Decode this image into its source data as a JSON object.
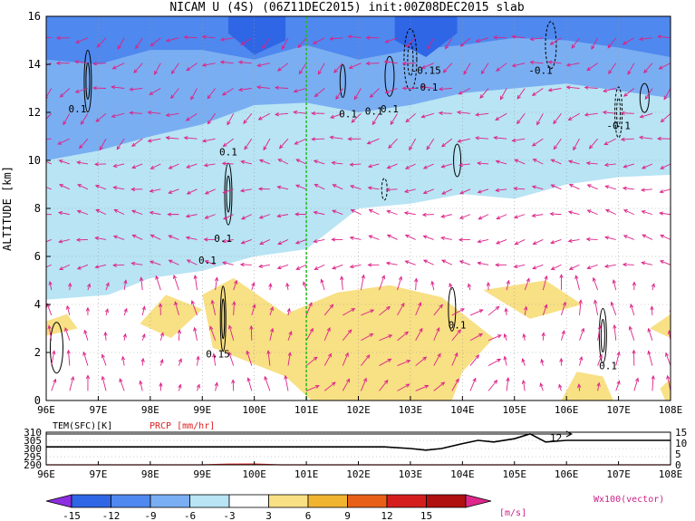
{
  "chart_data": [
    {
      "type": "heatmap",
      "title": "NICAM U (4S) (06Z11DEC2015) init:00Z08DEC2015 slab",
      "xlabel": "",
      "ylabel": "ALTITUDE [km]",
      "xlim": [
        96,
        108
      ],
      "ylim": [
        0,
        16
      ],
      "x_ticks": [
        "96E",
        "97E",
        "98E",
        "99E",
        "100E",
        "101E",
        "102E",
        "103E",
        "104E",
        "105E",
        "106E",
        "107E",
        "108E"
      ],
      "y_ticks": [
        "0",
        "2",
        "4",
        "6",
        "8",
        "10",
        "12",
        "14",
        "16"
      ],
      "grid": true,
      "marker_line_lon": 101.0,
      "contour_labels": [
        {
          "text": "0.1",
          "lon": 96.6,
          "alt": 12.0
        },
        {
          "text": "0.1",
          "lon": 99.5,
          "alt": 10.2
        },
        {
          "text": "0.1",
          "lon": 99.4,
          "alt": 6.6
        },
        {
          "text": "0.1",
          "lon": 99.1,
          "alt": 5.7
        },
        {
          "text": "0.15",
          "lon": 99.3,
          "alt": 1.8
        },
        {
          "text": "0.1",
          "lon": 101.8,
          "alt": 11.8
        },
        {
          "text": "0.1",
          "lon": 102.3,
          "alt": 11.9
        },
        {
          "text": "0.1",
          "lon": 102.6,
          "alt": 12.0
        },
        {
          "text": "-0.15",
          "lon": 103.3,
          "alt": 13.6
        },
        {
          "text": "-0.1",
          "lon": 103.3,
          "alt": 12.9
        },
        {
          "text": "-0.1",
          "lon": 105.5,
          "alt": 13.6
        },
        {
          "text": "-0.1",
          "lon": 107.0,
          "alt": 11.3
        },
        {
          "text": "0.1",
          "lon": 103.9,
          "alt": 3.0
        },
        {
          "text": "0.1",
          "lon": 106.8,
          "alt": 1.3
        }
      ],
      "vector_legend": "Wx100(vector)"
    },
    {
      "type": "line",
      "title": "",
      "left_label": "TEM(SFC)[K]",
      "right_label": "PRCP [mm/hr]",
      "x": [
        96,
        96.5,
        97,
        97.5,
        98,
        98.5,
        99,
        99.5,
        100,
        100.5,
        101,
        101.5,
        102,
        102.5,
        103,
        103.3,
        103.6,
        104,
        104.3,
        104.6,
        105,
        105.3,
        105.6,
        106,
        106.5,
        107,
        107.5,
        108
      ],
      "series": [
        {
          "values": [
            301,
            301,
            301,
            301,
            301,
            301,
            301,
            301,
            301,
            301,
            301,
            301,
            301,
            301,
            300,
            299,
            300,
            303,
            305,
            304,
            306,
            309,
            304,
            305,
            305,
            305,
            305,
            305
          ]
        },
        {
          "values": [
            0,
            0,
            0,
            0,
            0,
            0,
            0,
            0.3,
            0.4,
            0,
            0,
            0,
            0,
            0,
            0,
            0,
            0,
            0,
            0,
            0,
            0,
            0,
            0,
            0,
            0,
            0,
            0,
            0
          ]
        }
      ],
      "left_ticks": [
        "290",
        "295",
        "300",
        "305",
        "310"
      ],
      "right_ticks": [
        "0",
        "5",
        "10",
        "15"
      ],
      "x_ticks": [
        "96E",
        "97E",
        "98E",
        "99E",
        "100E",
        "101E",
        "102E",
        "103E",
        "104E",
        "105E",
        "106E",
        "107E",
        "108E"
      ],
      "annotation": "12"
    }
  ],
  "colorbar": {
    "ticks": [
      "-15",
      "-12",
      "-9",
      "-6",
      "-3",
      "3",
      "6",
      "9",
      "12",
      "15"
    ],
    "unit": "[m/s]",
    "colors": [
      "#8c2ee0",
      "#2e66e6",
      "#4f88ee",
      "#7aaef2",
      "#b8e4f4",
      "#ffffff",
      "#f8e084",
      "#f0b430",
      "#e86018",
      "#d41e1e",
      "#b01010",
      "#e0288c"
    ]
  }
}
